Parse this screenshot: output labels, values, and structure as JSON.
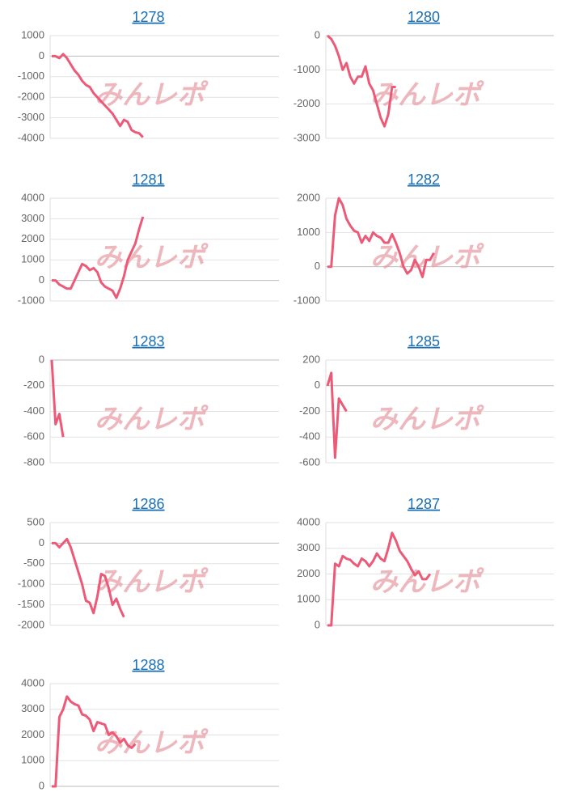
{
  "watermark": "みんレポ",
  "chart_data": [
    {
      "type": "line",
      "title": "1278",
      "color": "#ec5a78",
      "grid": true,
      "ylim": [
        -4000,
        1000
      ],
      "yticks": [
        1000,
        0,
        -1000,
        -2000,
        -3000,
        -4000
      ],
      "values": [
        0,
        0,
        -100,
        100,
        -100,
        -400,
        -700,
        -900,
        -1200,
        -1400,
        -1500,
        -1800,
        -2000,
        -2200,
        -2400,
        -2600,
        -2800,
        -3100,
        -3400,
        -3100,
        -3200,
        -3600,
        -3700,
        -3750,
        -3950
      ]
    },
    {
      "type": "line",
      "title": "1280",
      "color": "#ec5a78",
      "grid": true,
      "ylim": [
        -3000,
        0
      ],
      "yticks": [
        0,
        -1000,
        -2000,
        -3000
      ],
      "values": [
        0,
        -100,
        -300,
        -600,
        -1000,
        -800,
        -1200,
        -1400,
        -1200,
        -1200,
        -900,
        -1400,
        -1600,
        -2000,
        -2400,
        -2650,
        -2300,
        -1500,
        -1500
      ]
    },
    {
      "type": "line",
      "title": "1281",
      "color": "#ec5a78",
      "grid": true,
      "ylim": [
        -1000,
        4000
      ],
      "yticks": [
        4000,
        3000,
        2000,
        1000,
        0,
        -1000
      ],
      "values": [
        0,
        0,
        -200,
        -300,
        -400,
        -400,
        0,
        400,
        800,
        700,
        500,
        600,
        400,
        -100,
        -300,
        -400,
        -500,
        -850,
        -400,
        200,
        1000,
        1400,
        1800,
        2500,
        3100
      ]
    },
    {
      "type": "line",
      "title": "1282",
      "color": "#ec5a78",
      "grid": true,
      "ylim": [
        -1000,
        2000
      ],
      "yticks": [
        2000,
        1000,
        0,
        -1000
      ],
      "values": [
        0,
        0,
        1500,
        2000,
        1800,
        1400,
        1200,
        1050,
        1000,
        700,
        900,
        750,
        1000,
        900,
        850,
        700,
        700,
        950,
        700,
        400,
        0,
        -200,
        -100,
        200,
        0,
        -300,
        200,
        200,
        400
      ]
    },
    {
      "type": "line",
      "title": "1283",
      "color": "#ec5a78",
      "grid": true,
      "ylim": [
        -800,
        0
      ],
      "yticks": [
        0,
        -200,
        -400,
        -600,
        -800
      ],
      "values": [
        0,
        -500,
        -420,
        -600
      ]
    },
    {
      "type": "line",
      "title": "1285",
      "color": "#ec5a78",
      "grid": true,
      "ylim": [
        -600,
        200
      ],
      "yticks": [
        200,
        0,
        -200,
        -400,
        -600
      ],
      "values": [
        0,
        100,
        -560,
        -100,
        -150,
        -200
      ]
    },
    {
      "type": "line",
      "title": "1286",
      "color": "#ec5a78",
      "grid": true,
      "ylim": [
        -2000,
        500
      ],
      "yticks": [
        500,
        0,
        -500,
        -1000,
        -1500,
        -2000
      ],
      "values": [
        0,
        0,
        -100,
        0,
        100,
        -100,
        -400,
        -700,
        -1000,
        -1400,
        -1450,
        -1700,
        -1300,
        -750,
        -800,
        -1100,
        -1500,
        -1350,
        -1600,
        -1800
      ]
    },
    {
      "type": "line",
      "title": "1287",
      "color": "#ec5a78",
      "grid": true,
      "ylim": [
        0,
        4000
      ],
      "yticks": [
        4000,
        3000,
        2000,
        1000,
        0
      ],
      "values": [
        0,
        0,
        2400,
        2300,
        2700,
        2600,
        2550,
        2400,
        2300,
        2600,
        2500,
        2300,
        2500,
        2800,
        2600,
        2500,
        3000,
        3600,
        3300,
        2900,
        2700,
        2500,
        2200,
        1950,
        2100,
        1800,
        1800,
        2000
      ]
    },
    {
      "type": "line",
      "title": "1288",
      "color": "#ec5a78",
      "grid": true,
      "ylim": [
        0,
        4000
      ],
      "yticks": [
        4000,
        3000,
        2000,
        1000,
        0
      ],
      "values": [
        0,
        0,
        2700,
        3000,
        3500,
        3300,
        3200,
        3150,
        2800,
        2750,
        2600,
        2150,
        2500,
        2450,
        2400,
        2000,
        2100,
        1950,
        1700,
        1850,
        1600,
        1500,
        1650
      ]
    }
  ]
}
